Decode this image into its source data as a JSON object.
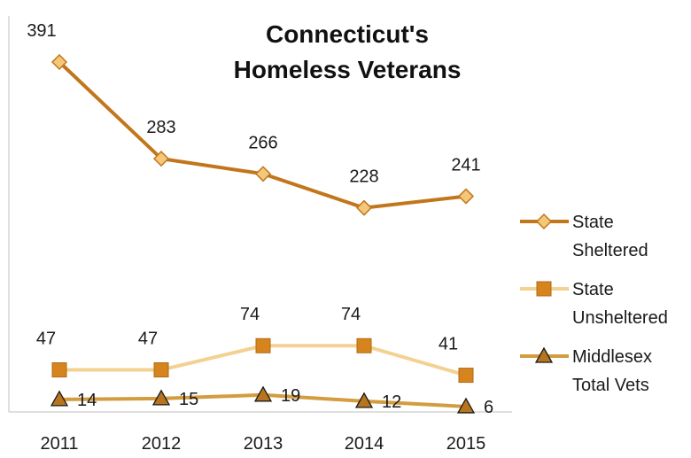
{
  "chart_data": {
    "type": "line",
    "title_lines": [
      "Connecticut's",
      "Homeless Veterans"
    ],
    "categories": [
      "2011",
      "2012",
      "2013",
      "2014",
      "2015"
    ],
    "series": [
      {
        "name_lines": [
          "State",
          "Sheltered"
        ],
        "values": [
          391,
          283,
          266,
          228,
          241
        ],
        "labels": [
          "391",
          "283",
          "266",
          "228",
          "241"
        ],
        "color": "#C2761B",
        "marker": "diamond",
        "marker_fill": "#F4C77A"
      },
      {
        "name_lines": [
          "State",
          "Unsheltered"
        ],
        "values": [
          47,
          47,
          74,
          74,
          41
        ],
        "labels": [
          "47",
          "47",
          "74",
          "74",
          "41"
        ],
        "color": "#F3D191",
        "marker": "square",
        "marker_fill": "#D6841E"
      },
      {
        "name_lines": [
          "Middlesex",
          "Total Vets"
        ],
        "values": [
          14,
          15,
          19,
          12,
          6
        ],
        "labels": [
          "14",
          "15",
          "19",
          "12",
          "6"
        ],
        "color": "#D39C3E",
        "marker": "triangle",
        "marker_fill": "#B8751F"
      }
    ],
    "y_axis_visible": false,
    "grid": false,
    "legend_position": "right"
  }
}
